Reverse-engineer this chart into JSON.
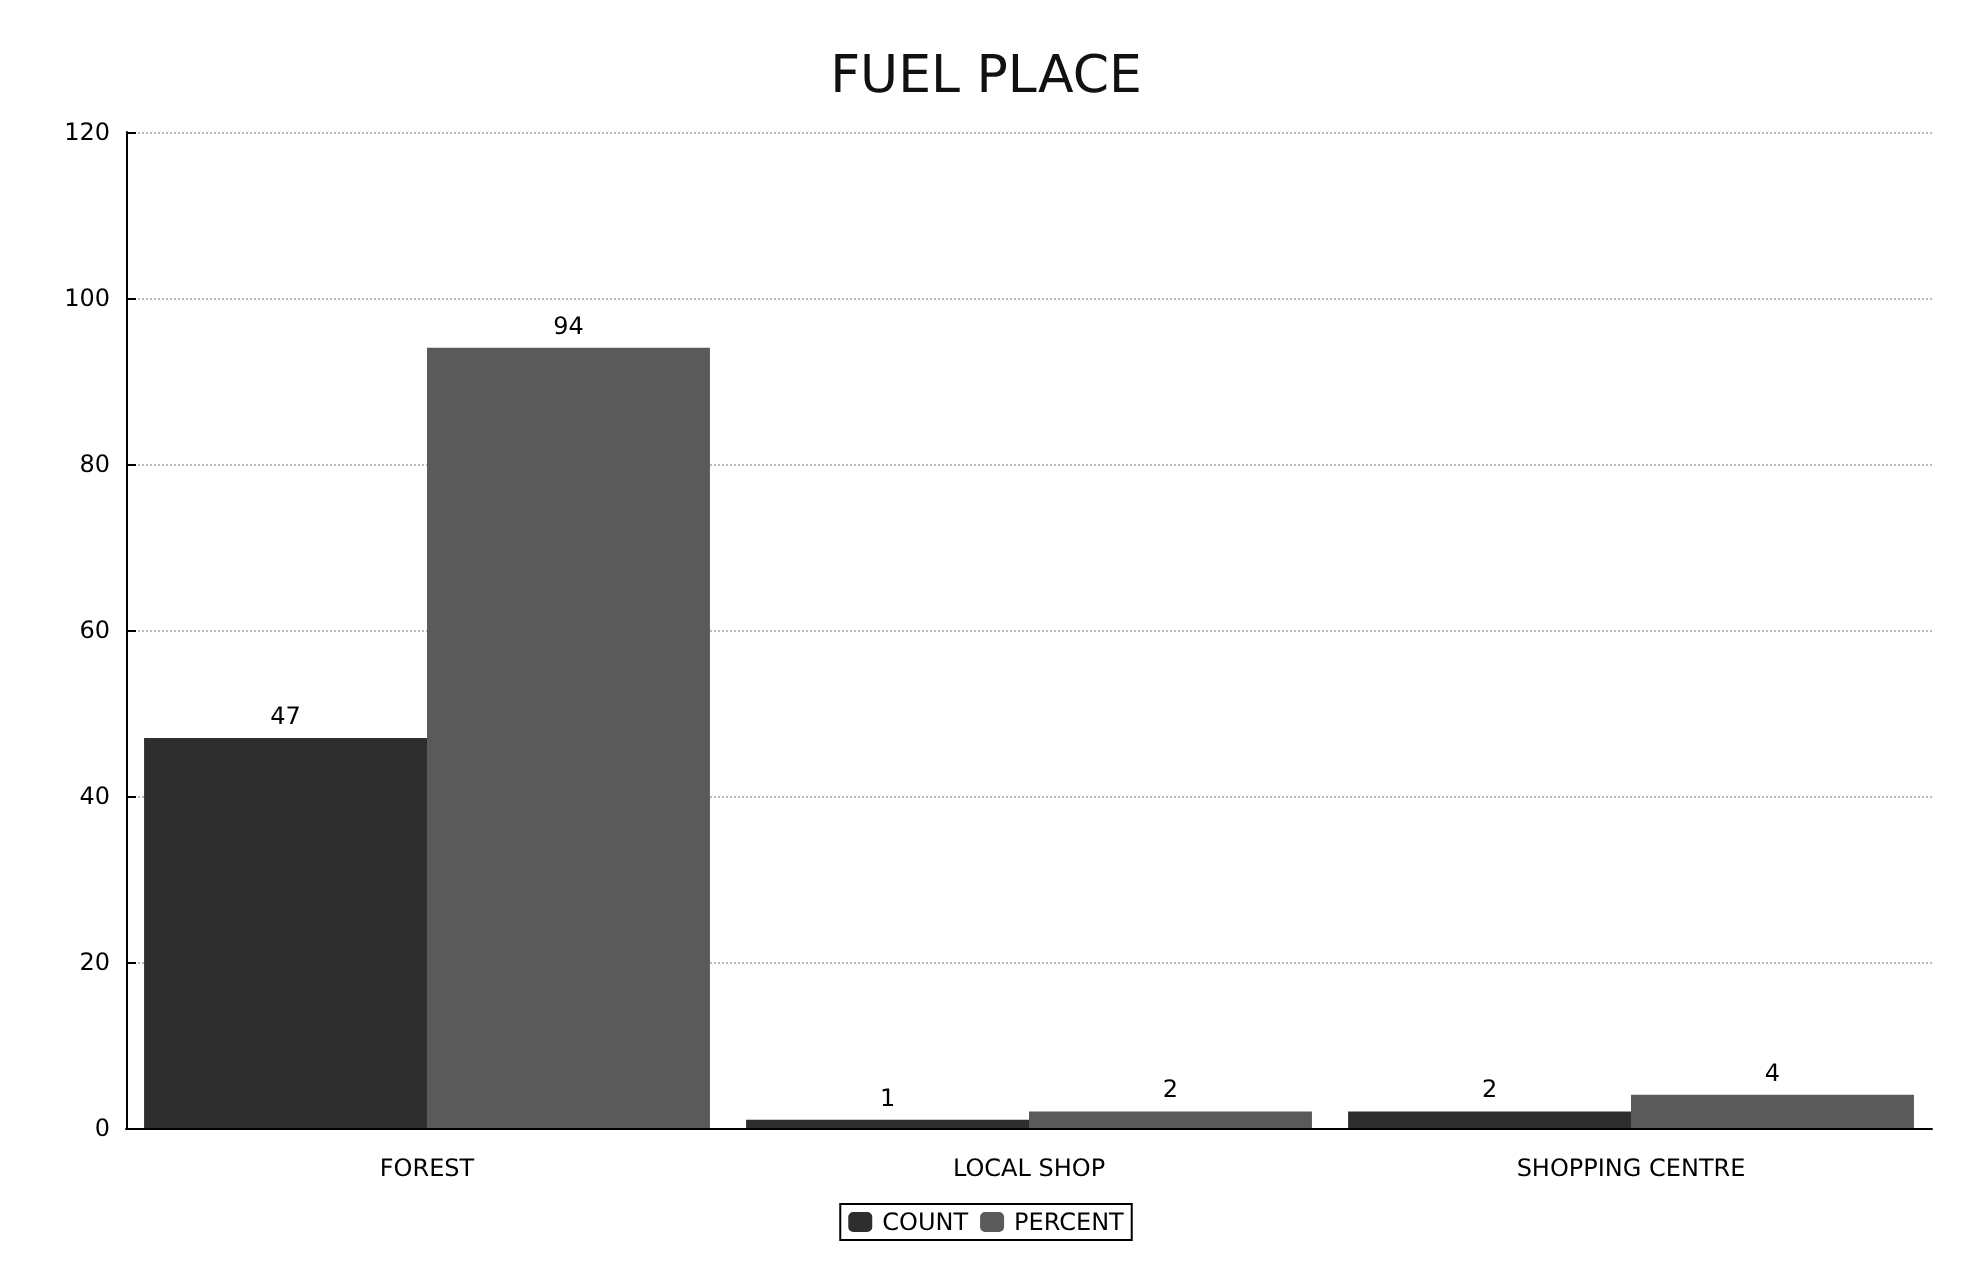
{
  "chart_data": {
    "type": "bar",
    "title": "FUEL PLACE",
    "categories": [
      "FOREST",
      "LOCAL SHOP",
      "SHOPPING CENTRE"
    ],
    "series": [
      {
        "name": "COUNT",
        "color": "#2e2e2e",
        "values": [
          47,
          1,
          2
        ]
      },
      {
        "name": "PERCENT",
        "color": "#5a5a5a",
        "values": [
          94,
          2,
          4
        ]
      }
    ],
    "ylim": [
      0,
      120
    ],
    "yticks": [
      0,
      20,
      40,
      60,
      80,
      100,
      120
    ],
    "grid": "y",
    "legend": "bottom",
    "data_labels": true
  }
}
